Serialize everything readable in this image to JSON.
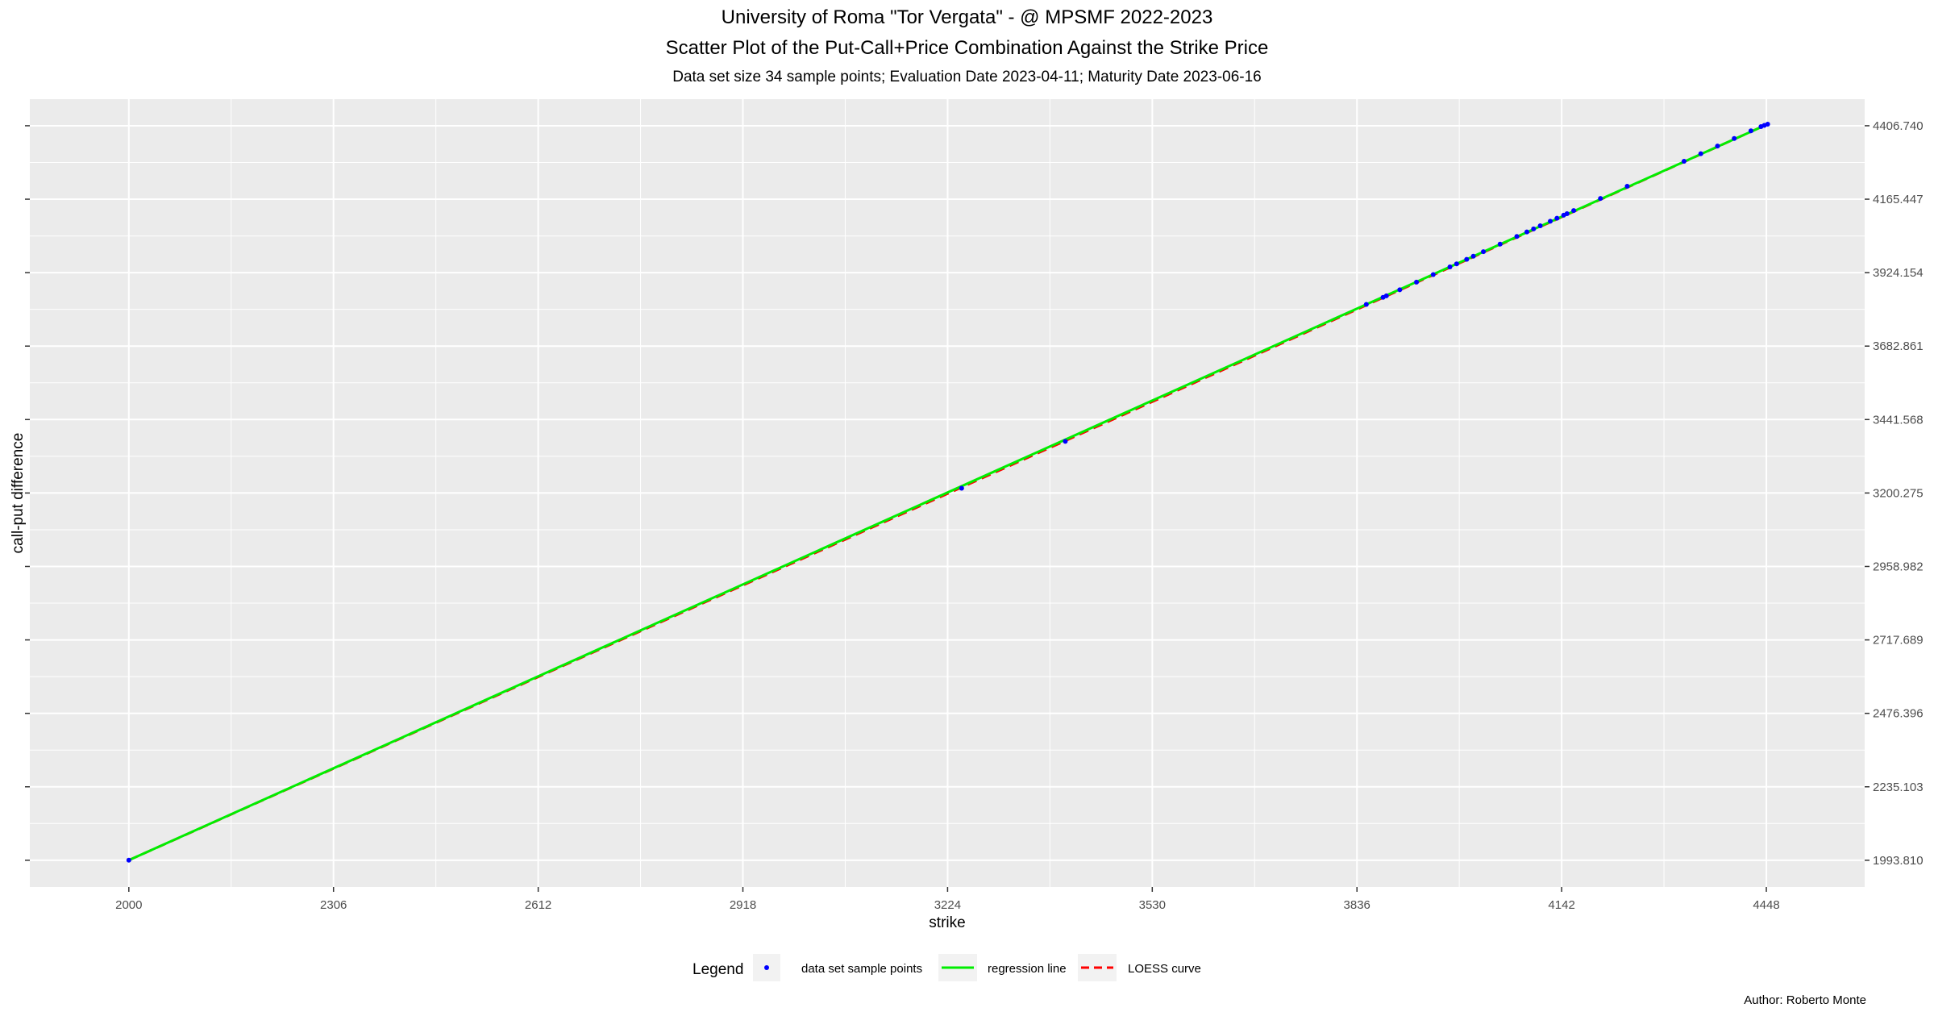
{
  "titles": {
    "title": "University of Roma \"Tor Vergata\" - @ MPSMF 2022-2023",
    "subtitle": "Scatter Plot of the Put-Call+Price Combination Against the Strike Price",
    "caption": "Data set size  34  sample points;    Evaluation Date 2023-04-11;   Maturity Date 2023-06-16"
  },
  "author": "Author: Roberto Monte",
  "colors": {
    "panel": "#ebebeb",
    "grid": "#ffffff",
    "points": "#0000ff",
    "regression": "#00ee00",
    "loess": "#ff0000"
  },
  "chart_data": {
    "type": "scatter",
    "xlabel": "strike",
    "ylabel": "call-put difference",
    "xlim": [
      1852,
      4595
    ],
    "ylim": [
      1906,
      4494
    ],
    "x_ticks": [
      "2000",
      "2306",
      "2612",
      "2918",
      "3224",
      "3530",
      "3836",
      "4142",
      "4448"
    ],
    "y_ticks": [
      "1993.810",
      "2235.103",
      "2476.396",
      "2717.689",
      "2958.982",
      "3200.275",
      "3441.568",
      "3682.861",
      "3924.154",
      "4165.447",
      "4406.740"
    ],
    "y_axis_position": "right",
    "grid": true,
    "legend": {
      "position": "bottom",
      "title": "Legend",
      "entries": [
        "data set sample points",
        "regression line",
        "LOESS curve"
      ]
    },
    "series": [
      {
        "name": "data set sample points",
        "kind": "points",
        "points": [
          [
            2000,
            1994
          ],
          [
            3245,
            3216
          ],
          [
            3400,
            3370
          ],
          [
            3850,
            3820
          ],
          [
            3875,
            3843
          ],
          [
            3880,
            3848
          ],
          [
            3900,
            3868
          ],
          [
            3925,
            3893
          ],
          [
            3950,
            3918
          ],
          [
            3975,
            3943
          ],
          [
            3985,
            3953
          ],
          [
            4000,
            3968
          ],
          [
            4010,
            3978
          ],
          [
            4025,
            3993
          ],
          [
            4050,
            4018
          ],
          [
            4075,
            4043
          ],
          [
            4090,
            4058
          ],
          [
            4100,
            4068
          ],
          [
            4110,
            4078
          ],
          [
            4125,
            4093
          ],
          [
            4135,
            4103
          ],
          [
            4145,
            4113
          ],
          [
            4150,
            4118
          ],
          [
            4160,
            4128
          ],
          [
            4200,
            4168
          ],
          [
            4240,
            4208
          ],
          [
            4325,
            4290
          ],
          [
            4350,
            4315
          ],
          [
            4375,
            4340
          ],
          [
            4400,
            4365
          ],
          [
            4425,
            4390
          ],
          [
            4440,
            4404
          ],
          [
            4445,
            4408
          ],
          [
            4450,
            4412
          ]
        ]
      },
      {
        "name": "regression line",
        "kind": "line",
        "points": [
          [
            2000,
            1994
          ],
          [
            4450,
            4412
          ]
        ]
      },
      {
        "name": "LOESS curve",
        "kind": "dashed",
        "points": [
          [
            2000,
            1994
          ],
          [
            3224,
            3198
          ],
          [
            3530,
            3500
          ],
          [
            4450,
            4412
          ]
        ]
      }
    ]
  }
}
